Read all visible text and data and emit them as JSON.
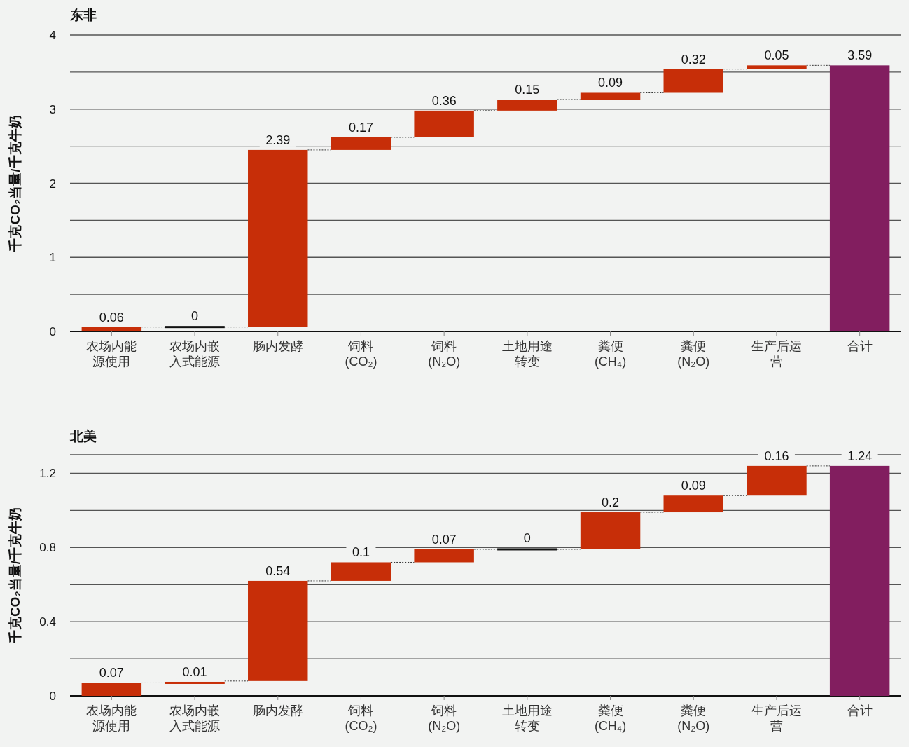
{
  "chart_data": [
    {
      "type": "bar",
      "title": "东非",
      "ylabel": "千克CO₂当量/千克牛奶",
      "categories": [
        "农场内能源使用",
        "农场内嵌入式能源",
        "肠内发酵",
        "饲料(CO₂)",
        "饲料(N₂O)",
        "土地用途转变",
        "粪便(CH₄)",
        "粪便(N₂O)",
        "生产后运营",
        "合计"
      ],
      "values": [
        0.06,
        0,
        2.39,
        0.17,
        0.36,
        0.15,
        0.09,
        0.32,
        0.05,
        3.59
      ],
      "base": [
        0,
        0.06,
        0.06,
        2.45,
        2.62,
        2.98,
        3.13,
        3.22,
        3.54,
        0
      ],
      "colors": [
        "#c72e08",
        "#111111",
        "#c72e08",
        "#c72e08",
        "#c72e08",
        "#c72e08",
        "#c72e08",
        "#c72e08",
        "#c72e08",
        "#821e5f"
      ],
      "ylim": [
        0,
        4
      ],
      "yticks": [
        0,
        {
          "value": 0.5,
          "label": null
        },
        1,
        {
          "value": 1.5,
          "label": null
        },
        2,
        {
          "value": 2.5,
          "label": null
        },
        3,
        {
          "value": 3.5,
          "label": null
        },
        4
      ],
      "grid": "y",
      "data_labels": true
    },
    {
      "type": "bar",
      "title": "北美",
      "ylabel": "千克CO₂当量/千克牛奶",
      "categories": [
        "农场内能源使用",
        "农场内嵌入式能源",
        "肠内发酵",
        "饲料(CO₂)",
        "饲料(N₂O)",
        "土地用途转变",
        "粪便(CH₄)",
        "粪便(N₂O)",
        "生产后运营",
        "合计"
      ],
      "values": [
        0.07,
        0.01,
        0.54,
        0.1,
        0.07,
        0,
        0.2,
        0.09,
        0.16,
        1.24
      ],
      "base": [
        0,
        0.07,
        0.08,
        0.62,
        0.72,
        0.79,
        0.79,
        0.99,
        1.08,
        0
      ],
      "colors": [
        "#c72e08",
        "#c72e08",
        "#c72e08",
        "#c72e08",
        "#c72e08",
        "#111111",
        "#c72e08",
        "#c72e08",
        "#c72e08",
        "#821e5f"
      ],
      "ylim": [
        0,
        1.3
      ],
      "yticks": [
        0,
        {
          "value": 0.2,
          "label": null
        },
        0.4,
        {
          "value": 0.6,
          "label": null
        },
        0.8,
        {
          "value": 1.0,
          "label": null
        },
        1.2
      ],
      "grid": "y",
      "data_labels": true
    }
  ]
}
